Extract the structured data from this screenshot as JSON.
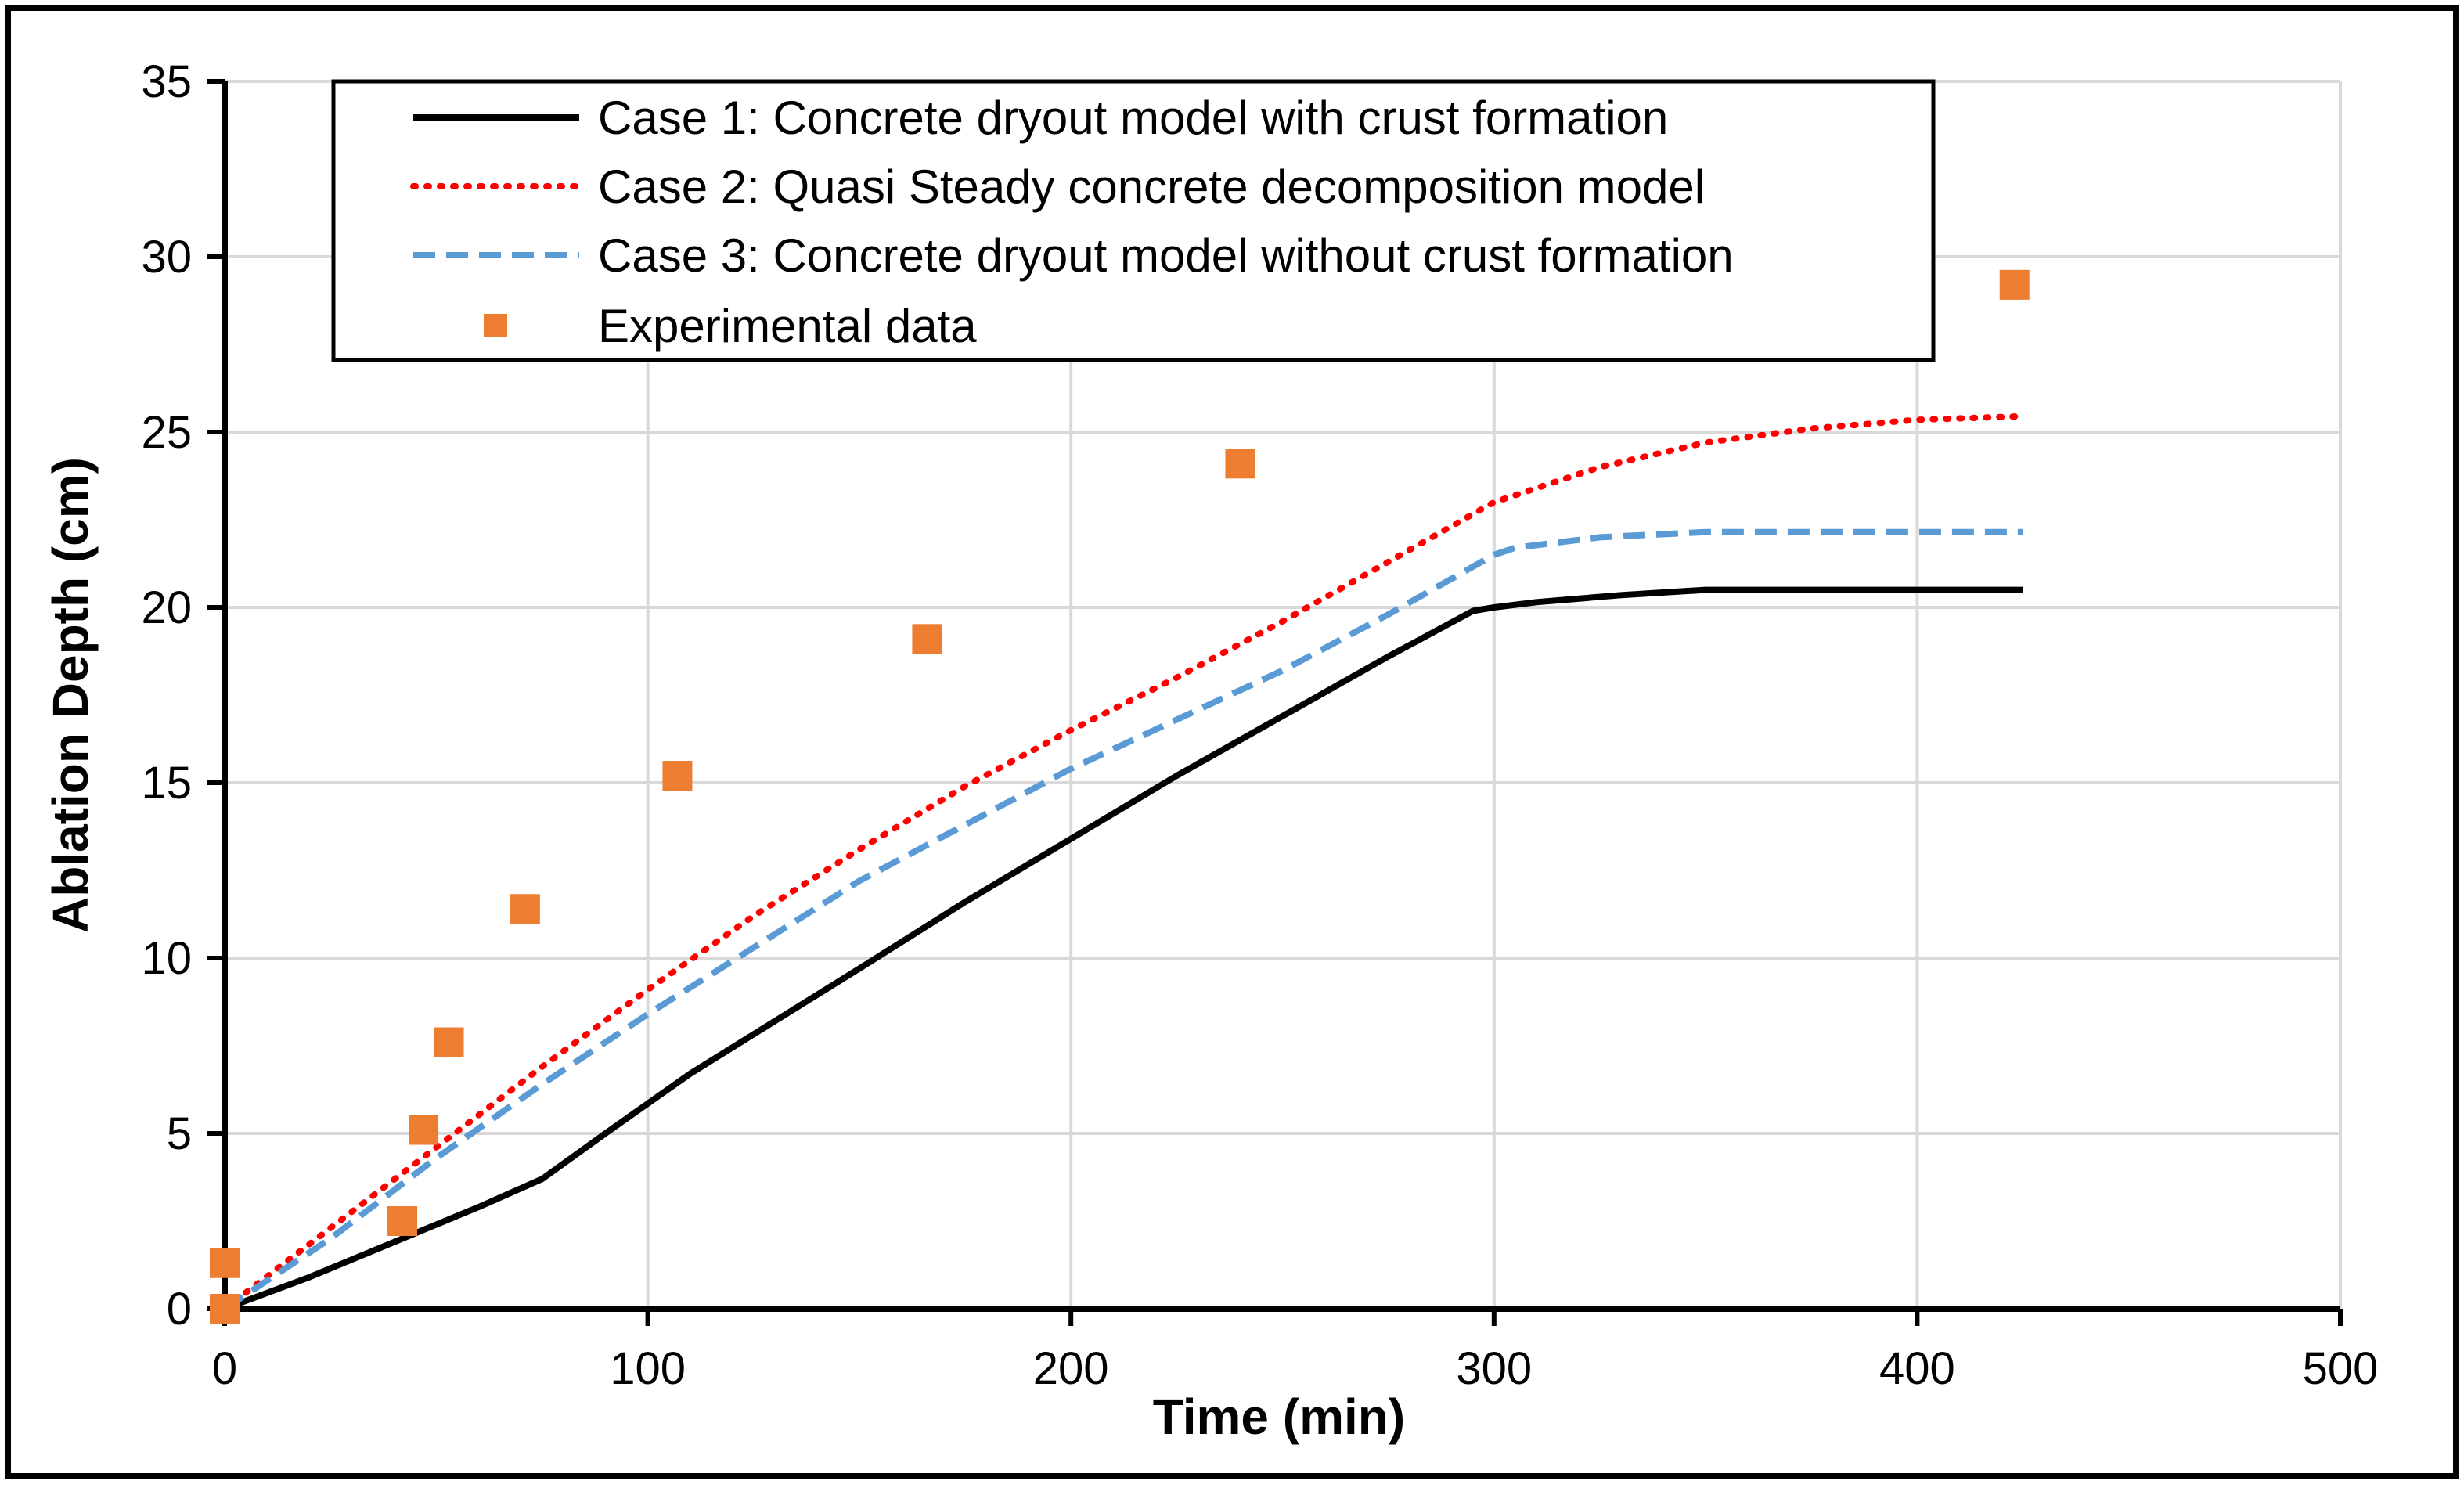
{
  "chart_data": {
    "type": "line",
    "title": "",
    "xlabel": "Time (min)",
    "ylabel": "Ablation Depth  (cm)",
    "xlim": [
      0,
      500
    ],
    "ylim": [
      0,
      35
    ],
    "xticks": [
      0,
      100,
      200,
      300,
      400,
      500
    ],
    "yticks": [
      0,
      5,
      10,
      15,
      20,
      25,
      30,
      35
    ],
    "xtick_labels": [
      "0",
      "100",
      "200",
      "300",
      "400",
      "500"
    ],
    "ytick_labels": [
      "0",
      "5",
      "10",
      "15",
      "20",
      "25",
      "30",
      "35"
    ],
    "grid": true,
    "legend_position": "top",
    "series": [
      {
        "name": "Case 1: Concrete dryout model with crust formation",
        "style": "solid",
        "color": "#000000",
        "x": [
          0,
          20,
          40,
          60,
          75,
          90,
          110,
          130,
          150,
          175,
          200,
          225,
          250,
          275,
          295,
          300,
          310,
          330,
          350,
          375,
          400,
          425
        ],
        "y": [
          0,
          0.9,
          1.9,
          2.9,
          3.7,
          5.0,
          6.7,
          8.2,
          9.7,
          11.6,
          13.4,
          15.2,
          16.9,
          18.6,
          19.9,
          20.0,
          20.15,
          20.35,
          20.5,
          20.5,
          20.5,
          20.5
        ]
      },
      {
        "name": "Case 2: Quasi Steady concrete decomposition model",
        "style": "dotted",
        "color": "#ff0000",
        "x": [
          0,
          25,
          50,
          75,
          100,
          125,
          150,
          175,
          200,
          225,
          250,
          275,
          300,
          325,
          350,
          375,
          400,
          425
        ],
        "y": [
          0,
          2.3,
          4.6,
          6.9,
          9.1,
          11.2,
          13.1,
          14.9,
          16.5,
          18.0,
          19.6,
          21.3,
          23.0,
          24.0,
          24.7,
          25.1,
          25.35,
          25.45
        ]
      },
      {
        "name": "Case 3: Concrete dryout model without crust formation",
        "style": "dashed",
        "color": "#5b9bd5",
        "x": [
          0,
          25,
          50,
          75,
          100,
          125,
          150,
          175,
          200,
          225,
          250,
          275,
          300,
          305,
          325,
          350,
          375,
          400,
          425
        ],
        "y": [
          0,
          2.0,
          4.3,
          6.4,
          8.4,
          10.3,
          12.2,
          13.8,
          15.4,
          16.8,
          18.2,
          19.8,
          21.5,
          21.7,
          22.0,
          22.15,
          22.15,
          22.15,
          22.15
        ]
      }
    ],
    "scatter": {
      "name": "Experimental data",
      "color": "#ed7d31",
      "x": [
        0,
        0,
        42,
        47,
        53,
        71,
        107,
        166,
        240,
        423
      ],
      "y": [
        0,
        1.3,
        2.5,
        5.1,
        7.6,
        11.4,
        15.2,
        19.1,
        24.1,
        29.2
      ]
    }
  }
}
